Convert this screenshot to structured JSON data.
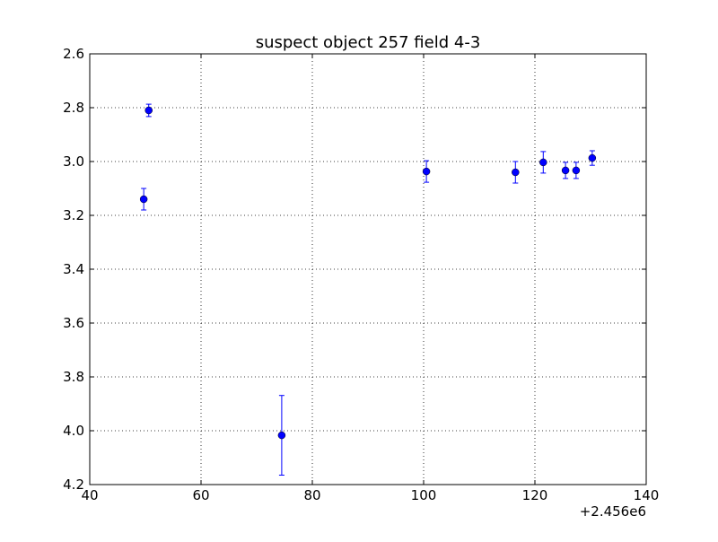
{
  "chart_data": {
    "type": "errorbar",
    "title": "suspect object 257 field 4-3",
    "x": [
      49.7,
      50.6,
      74.5,
      100.5,
      116.5,
      121.5,
      125.5,
      127.4,
      130.3
    ],
    "values": [
      3.14,
      2.81,
      4.017,
      3.037,
      3.04,
      3.003,
      3.033,
      3.033,
      2.987
    ],
    "errors": [
      0.04,
      0.023,
      0.148,
      0.04,
      0.04,
      0.04,
      0.03,
      0.03,
      0.027
    ],
    "color": "#0000ff",
    "xlim": [
      40,
      140
    ],
    "xticks": [
      40,
      60,
      80,
      100,
      120,
      140
    ],
    "x_offset_label": "+2.456e6",
    "ylim": [
      2.6,
      4.2
    ],
    "invert_y": true,
    "yticks": [
      2.6,
      2.8,
      {
        "value": 3.0,
        "label": "3.0"
      },
      3.2,
      3.4,
      3.6,
      3.8,
      {
        "value": 4.0,
        "label": "4.0"
      },
      4.2
    ],
    "grid": true
  }
}
